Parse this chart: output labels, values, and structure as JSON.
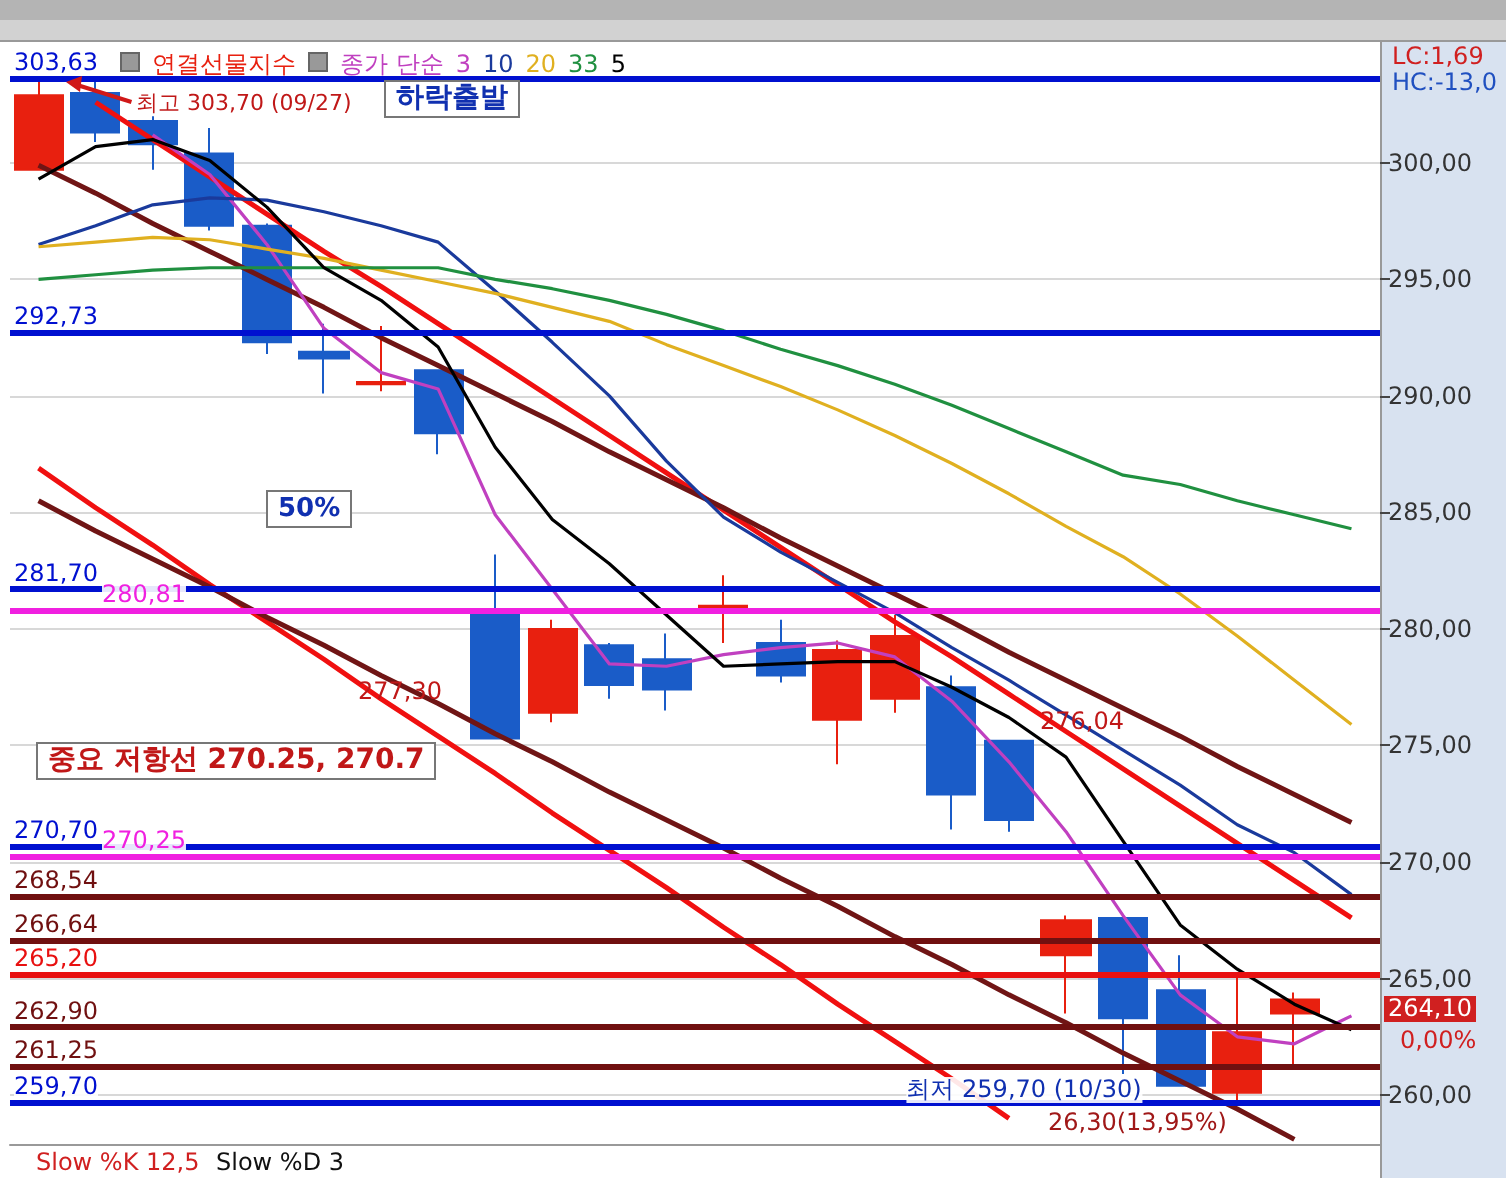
{
  "chart_data": {
    "type": "candlestick",
    "legend": "top left",
    "legend_title": "종가 단순",
    "grid": "y",
    "tick_labels": "y",
    "categories": [
      null,
      null,
      null,
      null,
      null,
      null,
      null,
      null,
      null,
      null,
      null,
      null,
      null,
      null,
      null,
      null,
      null,
      null,
      null,
      null,
      null,
      null,
      null,
      null
    ],
    "ylim": [
      257.9,
      305.1
    ],
    "yticks": [
      {
        "value": 260,
        "label": "260,00"
      },
      {
        "value": 265,
        "label": "265,00"
      },
      {
        "value": 270,
        "label": "270,00"
      },
      {
        "value": 275,
        "label": "275,00"
      },
      {
        "value": 280,
        "label": "280,00"
      },
      {
        "value": 285,
        "label": "285,00"
      },
      {
        "value": 290,
        "label": "290,00"
      },
      {
        "value": 295,
        "label": "295,00"
      },
      {
        "value": 300,
        "label": "300,00"
      }
    ],
    "series": [
      {
        "type": "candlestick",
        "name": "연결선물지수",
        "ohlc": [
          [
            299.7,
            303.7,
            299.7,
            302.9
          ],
          [
            303.0,
            303.5,
            300.9,
            301.3
          ],
          [
            301.8,
            302.0,
            299.7,
            300.8
          ],
          [
            300.4,
            301.5,
            297.1,
            297.3
          ],
          [
            297.3,
            297.4,
            291.8,
            292.3
          ],
          [
            291.9,
            293.1,
            290.1,
            291.6
          ],
          [
            290.5,
            293.0,
            290.2,
            290.6
          ],
          [
            291.1,
            291.1,
            287.5,
            288.4
          ],
          [
            280.8,
            283.2,
            275.3,
            275.3
          ],
          [
            276.4,
            280.4,
            276.0,
            280.0
          ],
          [
            279.3,
            279.4,
            277.0,
            277.6
          ],
          [
            278.7,
            279.8,
            276.5,
            277.4
          ],
          [
            280.7,
            282.3,
            279.4,
            281.0
          ],
          [
            279.4,
            280.4,
            277.7,
            278.0
          ],
          [
            276.1,
            279.5,
            274.2,
            279.1
          ],
          [
            277.0,
            280.6,
            276.4,
            279.7
          ],
          [
            277.5,
            278.0,
            271.4,
            272.9
          ],
          [
            275.2,
            275.2,
            271.3,
            271.8
          ],
          [
            266.0,
            267.7,
            263.5,
            267.5
          ],
          [
            267.6,
            267.6,
            260.9,
            263.3
          ],
          [
            264.5,
            266.0,
            260.4,
            260.4
          ],
          [
            260.1,
            265.1,
            259.7,
            262.7
          ],
          [
            263.5,
            264.4,
            261.3,
            264.1
          ],
          null
        ],
        "colors": [
          "#e8200f",
          "#1a5cc8",
          "#1a5cc8",
          "#1a5cc8",
          "#1a5cc8",
          "#1a5cc8",
          "#e8200f",
          "#1a5cc8",
          "#1a5cc8",
          "#e8200f",
          "#1a5cc8",
          "#1a5cc8",
          "#e8200f",
          "#1a5cc8",
          "#e8200f",
          "#e8200f",
          "#1a5cc8",
          "#1a5cc8",
          "#e8200f",
          "#1a5cc8",
          "#1a5cc8",
          "#e8200f",
          "#e8200f",
          null
        ]
      },
      {
        "type": "line",
        "name": "3",
        "color": "#c040c0",
        "values": [
          null,
          null,
          301.2,
          299.5,
          296.5,
          292.9,
          291.0,
          290.3,
          284.9,
          281.7,
          278.5,
          278.4,
          278.9,
          279.2,
          279.4,
          278.8,
          276.9,
          274.3,
          271.3,
          267.7,
          264.3,
          262.5,
          262.2,
          263.4
        ]
      },
      {
        "type": "line",
        "name": "10",
        "color": "#1a3a9c",
        "values": [
          296.5,
          297.3,
          298.2,
          298.5,
          298.4,
          297.9,
          297.3,
          296.6,
          294.5,
          292.3,
          290.0,
          287.2,
          284.8,
          283.3,
          282.0,
          280.7,
          279.2,
          277.8,
          276.3,
          274.8,
          273.3,
          271.6,
          270.4,
          268.6
        ]
      },
      {
        "type": "line",
        "name": "20",
        "color": "#e0b020",
        "values": [
          296.4,
          296.6,
          296.8,
          296.7,
          296.3,
          295.9,
          295.4,
          294.9,
          294.4,
          293.8,
          293.2,
          292.2,
          291.3,
          290.4,
          289.4,
          288.3,
          287.1,
          285.8,
          284.4,
          283.1,
          281.5,
          279.7,
          277.8,
          275.9
        ]
      },
      {
        "type": "line",
        "name": "33",
        "color": "#209040",
        "values": [
          295.0,
          295.2,
          295.4,
          295.5,
          295.5,
          295.5,
          295.5,
          295.5,
          295.0,
          294.6,
          294.1,
          293.5,
          292.8,
          292.0,
          291.3,
          290.5,
          289.6,
          288.6,
          287.6,
          286.6,
          286.2,
          285.5,
          284.9,
          284.3
        ]
      },
      {
        "type": "line",
        "name": "5",
        "color": "#000000",
        "values": [
          299.3,
          300.7,
          301.0,
          300.1,
          298.1,
          295.5,
          294.1,
          292.1,
          287.8,
          284.7,
          282.8,
          280.6,
          278.4,
          278.5,
          278.6,
          278.6,
          277.5,
          276.2,
          274.5,
          270.9,
          267.3,
          265.4,
          263.9,
          262.8
        ]
      },
      {
        "type": "line",
        "color": "#f01010",
        "values": [
          null,
          302.6,
          301.0,
          299.4,
          297.8,
          296.2,
          294.7,
          293.1,
          291.5,
          289.9,
          288.3,
          286.7,
          285.1,
          283.5,
          281.9,
          280.3,
          278.8,
          277.2,
          275.6,
          274.0,
          272.4,
          270.8,
          269.2,
          267.6
        ]
      },
      {
        "type": "line",
        "color": "#701515",
        "values": [
          299.9,
          298.7,
          297.4,
          296.2,
          295.0,
          293.8,
          292.5,
          291.3,
          290.1,
          288.9,
          287.6,
          286.4,
          285.2,
          283.9,
          282.7,
          281.5,
          280.3,
          279.0,
          277.8,
          276.6,
          275.4,
          274.1,
          272.9,
          271.7
        ]
      },
      {
        "type": "line",
        "color": "#f01010",
        "values": [
          286.9,
          285.2,
          283.6,
          281.9,
          280.3,
          278.7,
          277.0,
          275.4,
          273.8,
          272.1,
          270.5,
          268.9,
          267.2,
          265.6,
          263.9,
          262.3,
          260.7,
          259.0,
          null,
          null,
          null,
          null,
          null,
          null
        ]
      },
      {
        "type": "line",
        "color": "#701515",
        "values": [
          285.5,
          284.2,
          283.0,
          281.8,
          280.5,
          279.3,
          278.0,
          276.8,
          275.5,
          274.3,
          273.0,
          271.8,
          270.6,
          269.3,
          268.1,
          266.8,
          265.6,
          264.3,
          263.1,
          261.8,
          260.6,
          259.4,
          258.1,
          null
        ]
      }
    ],
    "ref_lines": [
      {
        "axis": "y",
        "value": 303.63,
        "label": "303,63",
        "color": "#0010d0"
      },
      {
        "axis": "y",
        "value": 292.73,
        "label": "292,73",
        "color": "#0010d0"
      },
      {
        "axis": "y",
        "value": 281.7,
        "label": "281,70",
        "color": "#0010d0"
      },
      {
        "axis": "y",
        "value": 280.81,
        "label": "280,81",
        "color": "#f020e0"
      },
      {
        "axis": "y",
        "value": 270.7,
        "label": "270,70",
        "color": "#0010d0"
      },
      {
        "axis": "y",
        "value": 270.25,
        "label": "270,25",
        "color": "#f020e0"
      },
      {
        "axis": "y",
        "value": 268.54,
        "label": "268,54",
        "color": "#701010"
      },
      {
        "axis": "y",
        "value": 266.64,
        "label": "266,64",
        "color": "#701010"
      },
      {
        "axis": "y",
        "value": 265.2,
        "label": "265,20",
        "color": "#e81010"
      },
      {
        "axis": "y",
        "value": 262.9,
        "label": "262,90",
        "color": "#701010"
      },
      {
        "axis": "y",
        "value": 261.25,
        "label": "261,25",
        "color": "#701010"
      },
      {
        "axis": "y",
        "value": 259.7,
        "label": "259,70",
        "color": "#0010d0"
      }
    ],
    "annotations": [
      {
        "text": "최고 303,70 (09/27)",
        "y": 303.7
      },
      "하락출발",
      "50%",
      {
        "text": "277,30",
        "y": 277.3
      },
      {
        "text": "276,04",
        "y": 276.04
      },
      "중요 저항선 270.25, 270.7",
      {
        "text": "최저 259,70 (10/30)",
        "y": 259.7
      },
      "26,30(13,95%)",
      "LC:1,69",
      "HC:-13,0",
      "Slow %K 12,5",
      "Slow %D 3",
      "264,10",
      "0,00%"
    ]
  }
}
